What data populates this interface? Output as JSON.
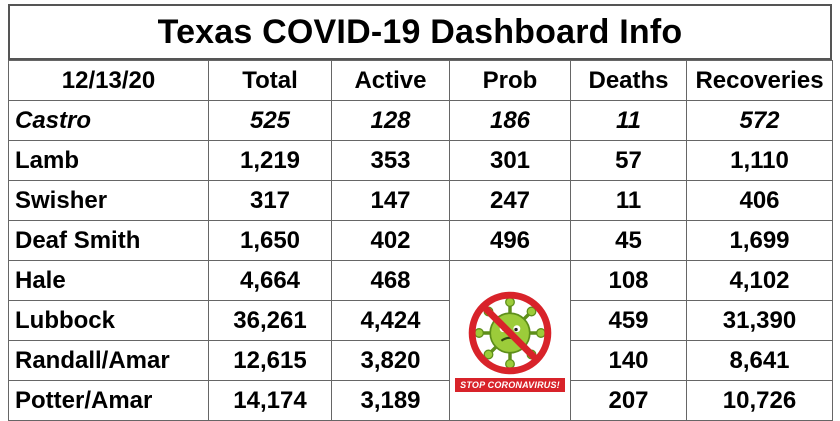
{
  "title": "Texas COVID-19 Dashboard Info",
  "columns": [
    "12/13/20",
    "Total",
    "Active",
    "Prob",
    "Deaths",
    "Recoveries"
  ],
  "rows": [
    {
      "county": "Castro",
      "total": "525",
      "active": "128",
      "prob": "186",
      "deaths": "11",
      "recoveries": "572",
      "italic": true
    },
    {
      "county": "Lamb",
      "total": "1,219",
      "active": "353",
      "prob": "301",
      "deaths": "57",
      "recoveries": "1,110"
    },
    {
      "county": "Swisher",
      "total": "317",
      "active": "147",
      "prob": "247",
      "deaths": "11",
      "recoveries": "406"
    },
    {
      "county": "Deaf Smith",
      "total": "1,650",
      "active": "402",
      "prob": "496",
      "deaths": "45",
      "recoveries": "1,699"
    },
    {
      "county": "Hale",
      "total": "4,664",
      "active": "468",
      "prob": "",
      "deaths": "108",
      "recoveries": "4,102"
    },
    {
      "county": "Lubbock",
      "total": "36,261",
      "active": "4,424",
      "prob": "",
      "deaths": "459",
      "recoveries": "31,390"
    },
    {
      "county": "Randall/Amar",
      "total": "12,615",
      "active": "3,820",
      "prob": "",
      "deaths": "140",
      "recoveries": "8,641"
    },
    {
      "county": "Potter/Amar",
      "total": "14,174",
      "active": "3,189",
      "prob": "",
      "deaths": "207",
      "recoveries": "10,726"
    }
  ],
  "badge": {
    "text": "STOP CORONAVIRUS!",
    "icon": "stop-coronavirus-icon",
    "colors": {
      "ring": "#d8232a",
      "virus": "#9ccc3a",
      "virus_dark": "#5e8f1a",
      "banner": "#d8232a"
    }
  }
}
